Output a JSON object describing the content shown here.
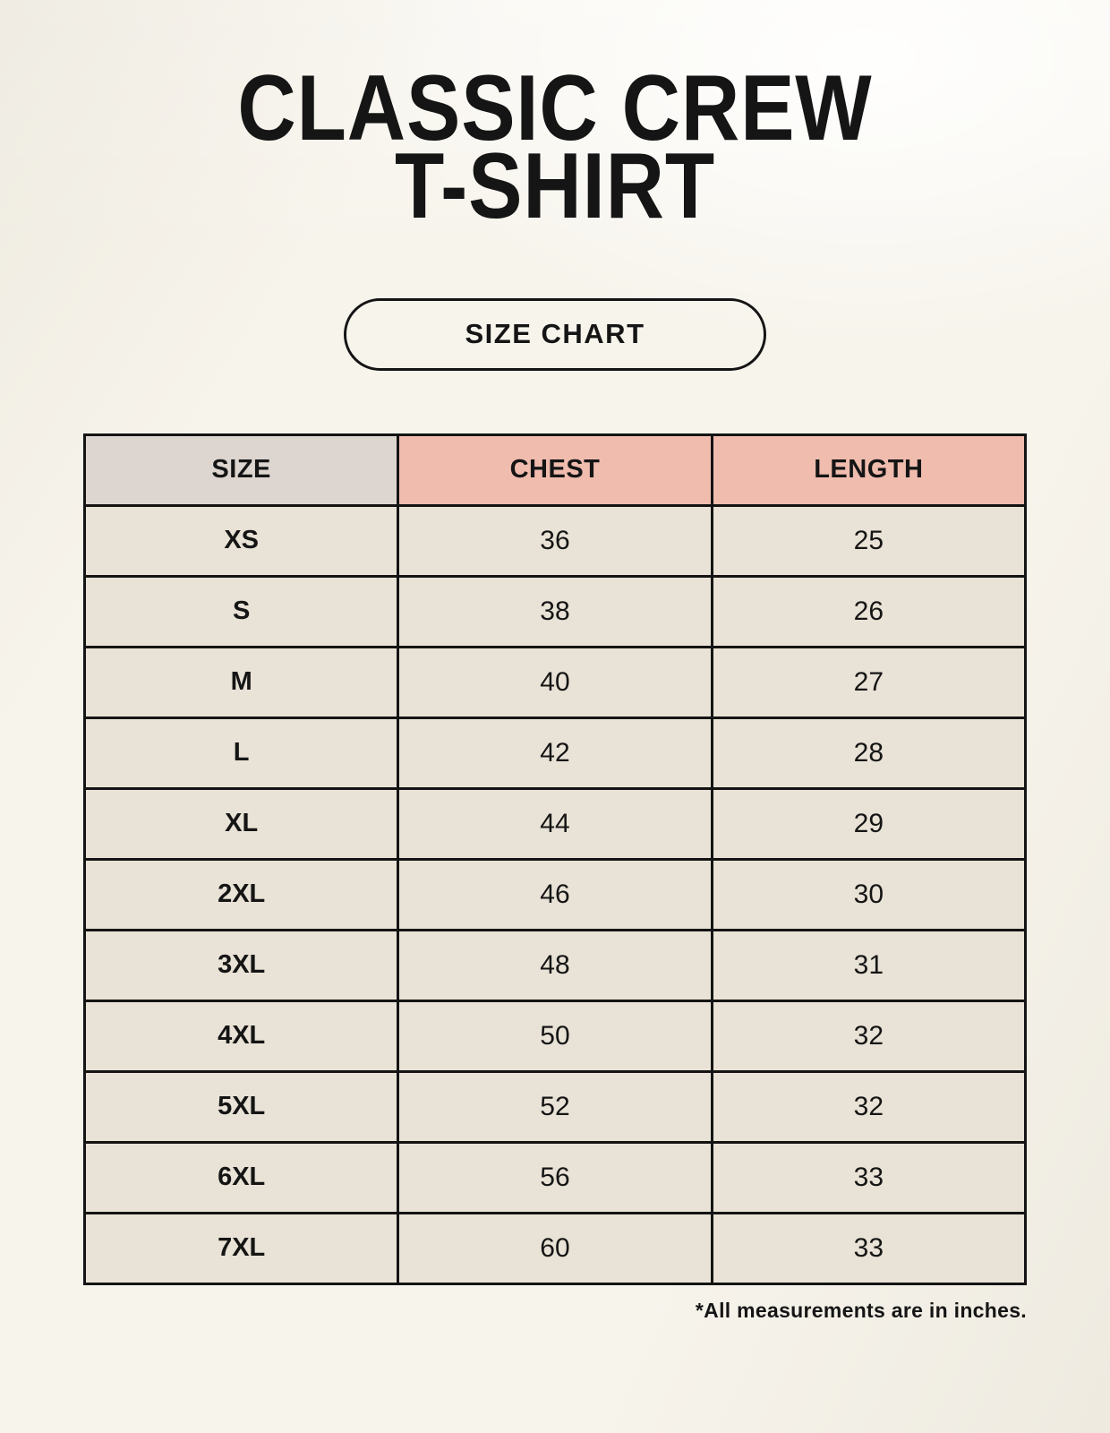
{
  "page": {
    "title": {
      "line1": "CLASSIC CREW",
      "line2": "T-SHIRT"
    },
    "badge": {
      "label": "SIZE CHART"
    },
    "footnote": "*All measurements are in inches."
  },
  "colors": {
    "page-bg": "#f7f4ec",
    "size-column-bg": "#ddd5cf",
    "header-accent-bg": "#efbcae",
    "cell-bg": "#e9e2d6",
    "border": "#141414",
    "text": "#151515"
  },
  "chart_data": {
    "type": "table",
    "title": "CLASSIC CREW T-SHIRT SIZE CHART",
    "columns": [
      "SIZE",
      "CHEST",
      "LENGTH"
    ],
    "units": "inches",
    "rows": [
      [
        "XS",
        "36",
        "25"
      ],
      [
        "S",
        "38",
        "26"
      ],
      [
        "M",
        "40",
        "27"
      ],
      [
        "L",
        "42",
        "28"
      ],
      [
        "XL",
        "44",
        "29"
      ],
      [
        "2XL",
        "46",
        "30"
      ],
      [
        "3XL",
        "48",
        "31"
      ],
      [
        "4XL",
        "50",
        "32"
      ],
      [
        "5XL",
        "52",
        "32"
      ],
      [
        "6XL",
        "56",
        "33"
      ],
      [
        "7XL",
        "60",
        "33"
      ]
    ]
  }
}
